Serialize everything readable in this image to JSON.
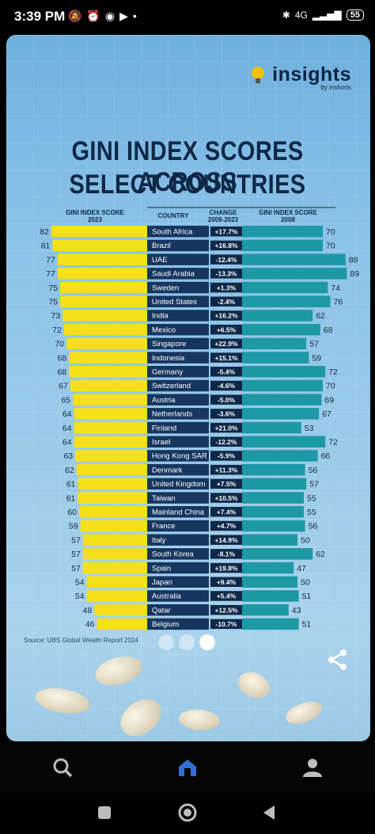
{
  "status_bar": {
    "time": "3:39 PM",
    "battery": "55",
    "network": "4G"
  },
  "brand": {
    "name": "insights",
    "by": "by inshorts"
  },
  "title_lines": [
    "GINI INDEX SCORES ACROSS",
    "SELECT COUNTRIES"
  ],
  "column_headers": {
    "left": [
      "GINI INDEX SCORE",
      "2023"
    ],
    "country": [
      "COUNTRY"
    ],
    "change": [
      "CHANGE",
      "2008-2023"
    ],
    "right": [
      "GINI INDEX SCORE",
      "2008"
    ]
  },
  "source": "Source: UBS Global Wealth Report 2024",
  "colors": {
    "gini_2023": "#f5e01a",
    "gini_2008": "#1d99a6",
    "country_bg": "#16365f",
    "change_bg": "#0e2848",
    "title": "#0f2745"
  },
  "chart_data": {
    "type": "bar",
    "title": "GINI INDEX SCORES ACROSS SELECT COUNTRIES",
    "categories": [
      "South Africa",
      "Brazil",
      "UAE",
      "Saudi Arabia",
      "Sweden",
      "United States",
      "India",
      "Mexico",
      "Singapore",
      "Indonesia",
      "Germany",
      "Switzerland",
      "Austria",
      "Netherlands",
      "Finland",
      "Israel",
      "Hong Kong SAR",
      "Denmark",
      "United Kingdom",
      "Taiwan",
      "Mainland China",
      "France",
      "Italy",
      "South Korea",
      "Spain",
      "Japan",
      "Australia",
      "Qatar",
      "Belgium"
    ],
    "series": [
      {
        "name": "GINI INDEX SCORE 2023",
        "values": [
          82,
          81,
          77,
          77,
          75,
          75,
          73,
          72,
          70,
          68,
          68,
          67,
          65,
          64,
          64,
          64,
          63,
          62,
          61,
          61,
          60,
          59,
          57,
          57,
          57,
          54,
          54,
          48,
          46
        ]
      },
      {
        "name": "GINI INDEX SCORE 2008",
        "values": [
          70,
          70,
          88,
          89,
          74,
          76,
          62,
          68,
          57,
          59,
          72,
          70,
          69,
          67,
          53,
          72,
          66,
          56,
          57,
          55,
          55,
          56,
          50,
          62,
          47,
          50,
          51,
          43,
          51
        ]
      }
    ],
    "change_labels": [
      "+17.7%",
      "+16.8%",
      "-12.4%",
      "-13.3%",
      "+1.3%",
      "-2.4%",
      "+16.2%",
      "+6.5%",
      "+22.9%",
      "+15.1%",
      "-5.4%",
      "-4.6%",
      "-5.0%",
      "-3.6%",
      "+21.0%",
      "-12.2%",
      "-5.9%",
      "+11.3%",
      "+7.5%",
      "+10.5%",
      "+7.4%",
      "+4.7%",
      "+14.9%",
      "-8.1%",
      "+19.8%",
      "+9.4%",
      "+5.4%",
      "+12.5%",
      "-10.7%"
    ]
  },
  "pager": {
    "count": 3,
    "active": 2
  }
}
